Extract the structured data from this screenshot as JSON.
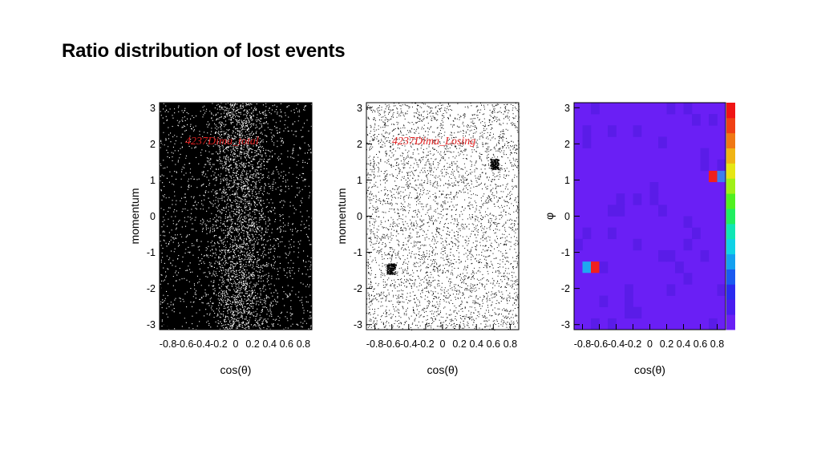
{
  "slide": {
    "title": "Ratio distribution of lost events"
  },
  "chart_data": [
    {
      "type": "scatter",
      "annotation": "4237Dima_total",
      "xlabel": "cos(θ)",
      "ylabel": "momentum",
      "xlim": [
        -0.9,
        0.9
      ],
      "ylim": [
        -3.14,
        3.14
      ],
      "xticks": [
        "-0.8",
        "-0.6",
        "-0.4",
        "-0.2",
        "0",
        "0.2",
        "0.4",
        "0.6",
        "0.8"
      ],
      "yticks": [
        "-3",
        "-2",
        "-1",
        "0",
        "1",
        "2",
        "3"
      ],
      "background": "#000000",
      "point_color": "#ffffff",
      "density": "very dense; lighter vertical band near cos(θ) ≈ 0 to 0.2"
    },
    {
      "type": "scatter",
      "annotation": "4237Dima_Losing",
      "xlabel": "cos(θ)",
      "ylabel": "momentum",
      "xlim": [
        -0.9,
        0.9
      ],
      "ylim": [
        -3.14,
        3.14
      ],
      "xticks": [
        "-0.8",
        "-0.6",
        "-0.4",
        "-0.2",
        "0",
        "0.2",
        "0.4",
        "0.6",
        "0.8"
      ],
      "yticks": [
        "-3",
        "-2",
        "-1",
        "0",
        "1",
        "2",
        "3"
      ],
      "background": "#ffffff",
      "point_color": "#000000",
      "clusters": [
        {
          "x": [
            -0.66,
            -0.56
          ],
          "y": [
            -1.6,
            -1.3
          ]
        },
        {
          "x": [
            0.56,
            0.66
          ],
          "y": [
            1.3,
            1.6
          ]
        }
      ]
    },
    {
      "type": "heatmap",
      "xlabel": "cos(θ)",
      "ylabel": "φ",
      "xlim": [
        -0.9,
        0.9
      ],
      "ylim": [
        -3.14,
        3.14
      ],
      "xticks": [
        "-0.8",
        "-0.6",
        "-0.4",
        "-0.2",
        "0",
        "0.2",
        "0.4",
        "0.6",
        "0.8"
      ],
      "yticks": [
        "-3",
        "-2",
        "-1",
        "0",
        "1",
        "2",
        "3"
      ],
      "bins": {
        "nx": 18,
        "ny": 20
      },
      "base_color": "#6a1ff5",
      "variant_color": "#5a1ce8",
      "hot_cells": [
        {
          "ix": 1,
          "iy": 5,
          "color": "#1fa8f0"
        },
        {
          "ix": 2,
          "iy": 5,
          "color": "#f0201e"
        },
        {
          "ix": 16,
          "iy": 13,
          "color": "#f0201e"
        },
        {
          "ix": 17,
          "iy": 13,
          "color": "#3d7df0"
        }
      ],
      "colorbar": [
        "#6a1ff5",
        "#4a1cf0",
        "#2a2af0",
        "#1a5af0",
        "#14a0f0",
        "#10d2e6",
        "#10e6b4",
        "#20ee60",
        "#50f020",
        "#a0f018",
        "#e6e614",
        "#f0b414",
        "#f07814",
        "#f04014",
        "#f01414"
      ]
    }
  ]
}
